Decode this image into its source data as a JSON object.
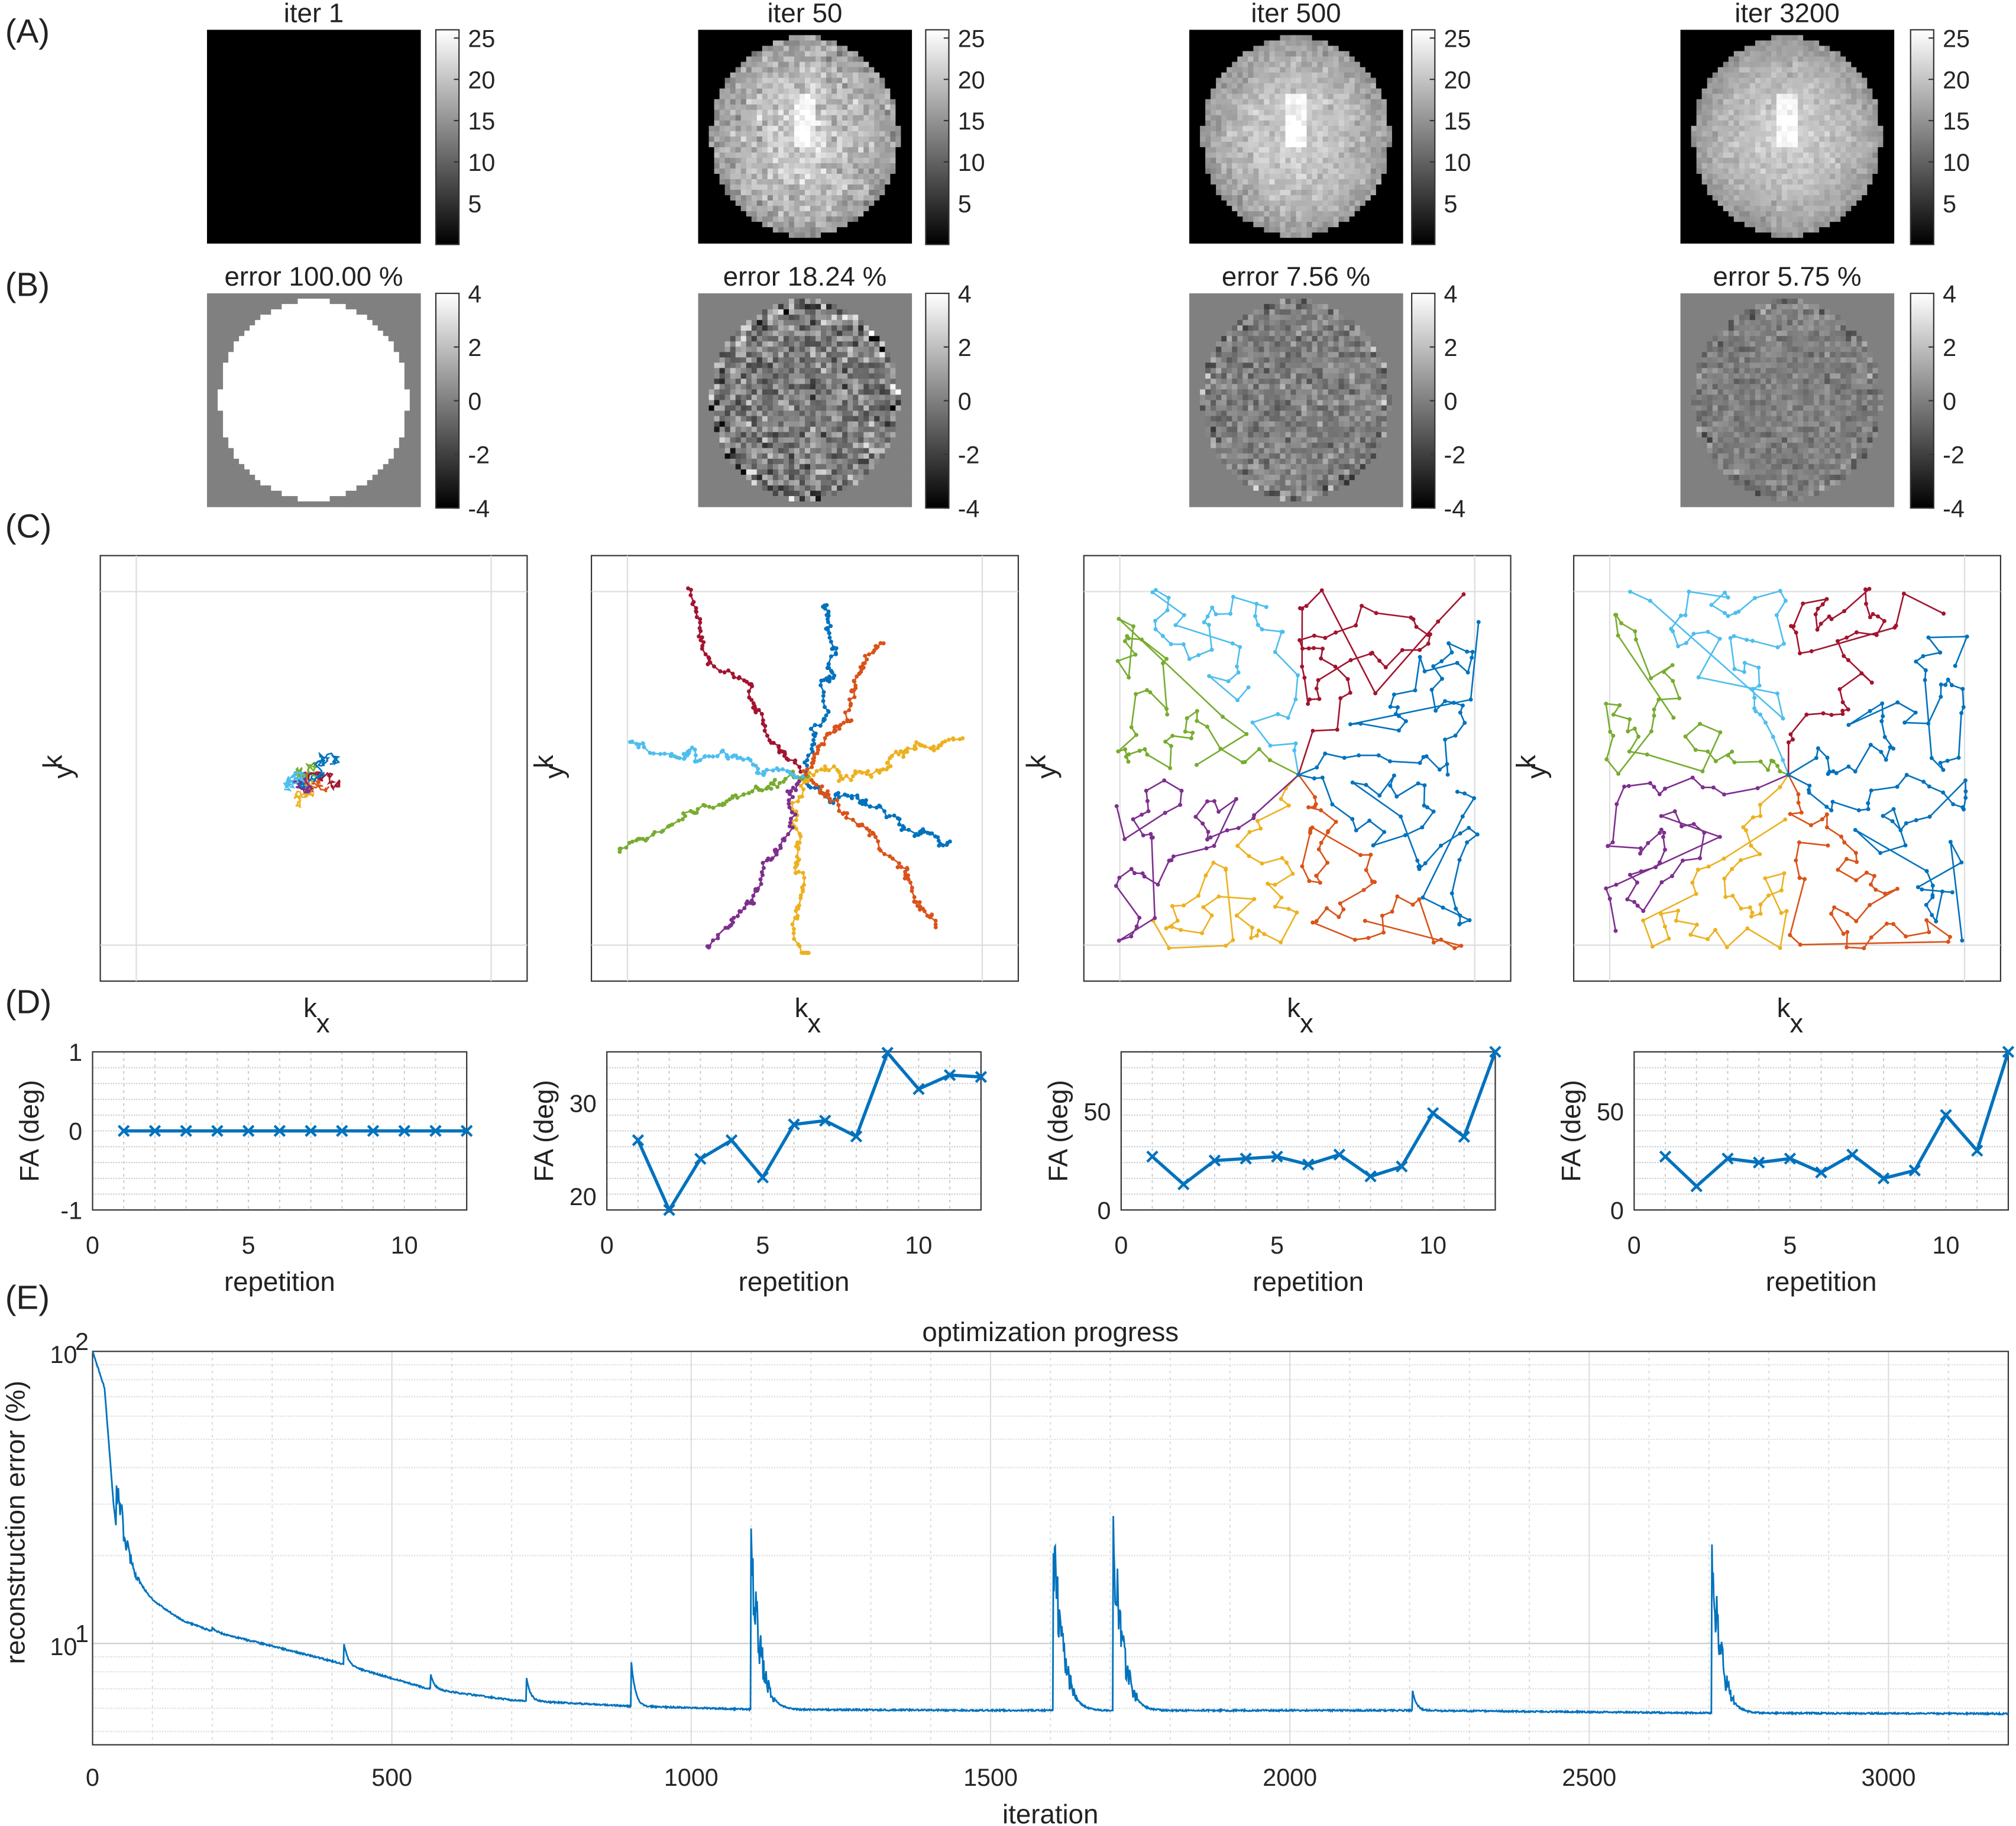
{
  "panel_labels": [
    "(A)",
    "(B)",
    "(C)",
    "(D)",
    "(E)"
  ],
  "row_a": {
    "titles": [
      "iter 1",
      "iter 50",
      "iter 500",
      "iter 3200"
    ],
    "colorbar_ticks": [
      5,
      10,
      15,
      20,
      25
    ],
    "colorbar_range": [
      0,
      26
    ]
  },
  "row_b": {
    "titles": [
      "error 100.00 %",
      "error 18.24 %",
      "error 7.56 %",
      "error 5.75 %"
    ],
    "colorbar_ticks": [
      -4,
      -2,
      0,
      2,
      4
    ],
    "colorbar_range": [
      -4,
      4
    ]
  },
  "row_c": {
    "ylabel": "k",
    "ylabel_sub": "y",
    "xlabel": "k",
    "xlabel_sub": "x",
    "trajectory_colors": [
      "#0072BD",
      "#D95319",
      "#EDB120",
      "#7E2F8E",
      "#77AC30",
      "#4DBEEE",
      "#A2142F"
    ]
  },
  "chart_data": [
    {
      "type": "line",
      "x": [
        1,
        2,
        3,
        4,
        5,
        6,
        7,
        8,
        9,
        10,
        11,
        12
      ],
      "values": [
        0,
        0,
        0,
        0,
        0,
        0,
        0,
        0,
        0,
        0,
        0,
        0
      ],
      "xlabel": "repetition",
      "ylabel": "FA (deg)",
      "xlim": [
        0,
        12
      ],
      "ylim": [
        -1,
        1
      ],
      "xticks": [
        0,
        5,
        10
      ],
      "yticks": [
        -1,
        0,
        1
      ],
      "marker": "x",
      "color": "#0072BD",
      "grid": true
    },
    {
      "type": "line",
      "x": [
        1,
        2,
        3,
        4,
        5,
        6,
        7,
        8,
        9,
        10,
        11,
        12
      ],
      "values": [
        26,
        18.5,
        24,
        26,
        22,
        27.7,
        28.1,
        26.4,
        35.4,
        31.5,
        33,
        32.8
      ],
      "xlabel": "repetition",
      "ylabel": "FA (deg)",
      "xlim": [
        0,
        12
      ],
      "ylim": [
        18.5,
        35.5
      ],
      "xticks": [
        0,
        5,
        10
      ],
      "yticks": [
        20,
        30
      ],
      "marker": "x",
      "color": "#0072BD",
      "grid": true
    },
    {
      "type": "line",
      "x": [
        1,
        2,
        3,
        4,
        5,
        6,
        7,
        8,
        9,
        10,
        11,
        12
      ],
      "values": [
        27,
        13,
        25,
        26,
        27,
        23,
        28,
        17,
        22,
        49,
        37,
        80
      ],
      "xlabel": "repetition",
      "ylabel": "FA (deg)",
      "xlim": [
        0,
        12
      ],
      "ylim": [
        0,
        80
      ],
      "xticks": [
        0,
        5,
        10
      ],
      "yticks": [
        0,
        50
      ],
      "marker": "x",
      "color": "#0072BD",
      "grid": true
    },
    {
      "type": "line",
      "x": [
        1,
        2,
        3,
        4,
        5,
        6,
        7,
        8,
        9,
        10,
        11,
        12
      ],
      "values": [
        27,
        12,
        26,
        24,
        26,
        19,
        28,
        16,
        20,
        48,
        30,
        80
      ],
      "xlabel": "repetition",
      "ylabel": "FA (deg)",
      "xlim": [
        0,
        12
      ],
      "ylim": [
        0,
        80
      ],
      "xticks": [
        0,
        5,
        10
      ],
      "yticks": [
        0,
        50
      ],
      "marker": "x",
      "color": "#0072BD",
      "grid": true
    },
    {
      "type": "line",
      "title": "optimization progress",
      "xlabel": "iteration",
      "ylabel": "reconstruction error (%)",
      "yscale": "log",
      "xlim": [
        0,
        3200
      ],
      "ylim": [
        4.5,
        100
      ],
      "xticks": [
        0,
        500,
        1000,
        1500,
        2000,
        2500,
        3000
      ],
      "yticks": [
        {
          "value": 10,
          "base": "10",
          "exp": "1"
        },
        {
          "value": 100,
          "base": "10",
          "exp": "2"
        }
      ],
      "color": "#0072BD",
      "grid": true,
      "baseline": {
        "x": [
          0,
          20,
          35,
          45,
          60,
          100,
          150,
          200,
          300,
          400,
          500,
          560,
          700,
          900,
          1100,
          1500,
          2000,
          2200,
          2700,
          3200
        ],
        "y": [
          100,
          75,
          30,
          20,
          17,
          14,
          12,
          11,
          9.8,
          8.7,
          7.6,
          7.0,
          6.4,
          6.1,
          5.95,
          5.9,
          5.9,
          5.9,
          5.78,
          5.75
        ]
      },
      "spikes": [
        {
          "x": 40,
          "peak": 35
        },
        {
          "x": 200,
          "peak": 11.3
        },
        {
          "x": 420,
          "peak": 10
        },
        {
          "x": 565,
          "peak": 7.8
        },
        {
          "x": 725,
          "peak": 7.6
        },
        {
          "x": 900,
          "peak": 8.6
        },
        {
          "x": 1100,
          "peak": 19.5
        },
        {
          "x": 1605,
          "peak": 20.5
        },
        {
          "x": 1705,
          "peak": 21.5
        },
        {
          "x": 2205,
          "peak": 6.9
        },
        {
          "x": 2705,
          "peak": 18
        }
      ]
    }
  ]
}
